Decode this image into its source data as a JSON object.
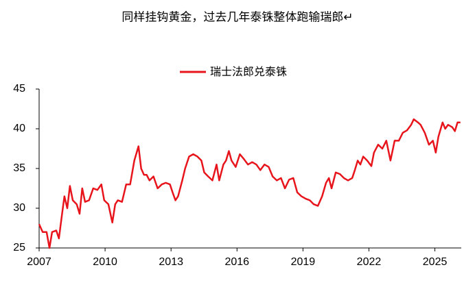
{
  "chart_data": {
    "type": "line",
    "title": "同样挂钩黄金，过去几年泰铢整体跑输瑞郎↵",
    "x": [
      2007.0,
      2007.16,
      2007.34,
      2007.47,
      2007.59,
      2007.78,
      2007.9,
      2008.03,
      2008.15,
      2008.28,
      2008.4,
      2008.53,
      2008.71,
      2008.84,
      2008.96,
      2009.09,
      2009.27,
      2009.46,
      2009.65,
      2009.83,
      2009.96,
      2010.15,
      2010.33,
      2010.46,
      2010.58,
      2010.77,
      2010.96,
      2011.14,
      2011.33,
      2011.52,
      2011.64,
      2011.77,
      2011.89,
      2012.02,
      2012.2,
      2012.39,
      2012.58,
      2012.76,
      2012.95,
      2013.07,
      2013.2,
      2013.32,
      2013.51,
      2013.64,
      2013.82,
      2014.01,
      2014.2,
      2014.38,
      2014.51,
      2014.69,
      2014.88,
      2015.07,
      2015.19,
      2015.38,
      2015.5,
      2015.63,
      2015.75,
      2015.94,
      2016.13,
      2016.31,
      2016.5,
      2016.69,
      2016.88,
      2017.06,
      2017.25,
      2017.44,
      2017.62,
      2017.81,
      2018.0,
      2018.18,
      2018.37,
      2018.56,
      2018.74,
      2018.93,
      2019.12,
      2019.31,
      2019.49,
      2019.68,
      2019.87,
      2020.05,
      2020.18,
      2020.3,
      2020.49,
      2020.68,
      2020.86,
      2021.05,
      2021.24,
      2021.36,
      2021.49,
      2021.61,
      2021.74,
      2021.92,
      2022.11,
      2022.23,
      2022.42,
      2022.61,
      2022.79,
      2022.98,
      2023.17,
      2023.36,
      2023.54,
      2023.73,
      2023.92,
      2024.04,
      2024.23,
      2024.35,
      2024.54,
      2024.73,
      2024.91,
      2025.04,
      2025.16,
      2025.35,
      2025.47,
      2025.6,
      2025.79,
      2025.91,
      2026.03,
      2026.16
    ],
    "series": [
      {
        "name": "瑞士法郎兑泰铢",
        "color": "#e8141b",
        "values": [
          28,
          27,
          27,
          25,
          27,
          27.2,
          26.2,
          29,
          31.5,
          30,
          32.8,
          31,
          30.5,
          29.3,
          32.5,
          30.8,
          31,
          32.5,
          32.3,
          33,
          31,
          30.5,
          28.2,
          30.5,
          31,
          30.8,
          33,
          33,
          36,
          37.8,
          35,
          34.2,
          34.2,
          33.5,
          34,
          32.5,
          33,
          33.2,
          33,
          32,
          31,
          31.5,
          33.5,
          35,
          36.5,
          36.8,
          36.5,
          36,
          34.5,
          34,
          33.5,
          35.5,
          33.5,
          35.5,
          36,
          37.2,
          36,
          35.2,
          36.8,
          36.2,
          35.5,
          35.8,
          35.5,
          34.8,
          35.5,
          35.2,
          34,
          33.5,
          33.8,
          32.5,
          33.6,
          33.8,
          32,
          31.5,
          31.2,
          31,
          30.5,
          30.3,
          31.5,
          33.2,
          33.8,
          32.5,
          34.5,
          34.3,
          33.8,
          33.5,
          33.8,
          34.8,
          36,
          35.5,
          36.5,
          36,
          35.3,
          37,
          38,
          37.5,
          38.5,
          36,
          38.5,
          38.5,
          39.5,
          39.8,
          40.5,
          41.2,
          40.8,
          40.5,
          39.5,
          38,
          38.5,
          37,
          39,
          40.8,
          40,
          40.5,
          40.2,
          39.7,
          40.8,
          40.8
        ]
      }
    ],
    "xlim": [
      2007,
      2026.2
    ],
    "xticks": [
      2007,
      2010,
      2013,
      2016,
      2019,
      2022,
      2025
    ],
    "ylim": [
      25,
      45
    ],
    "yticks": [
      25,
      30,
      35,
      40,
      45
    ],
    "grid": false
  }
}
